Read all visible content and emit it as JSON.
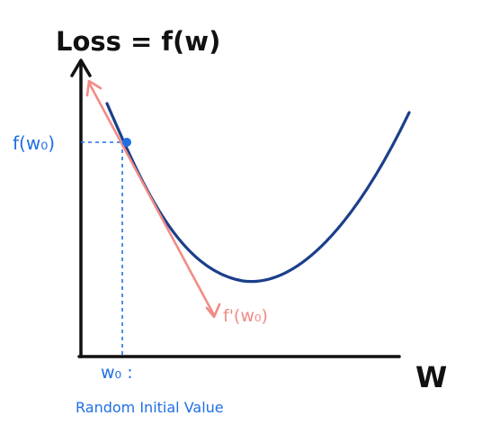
{
  "title": "Loss = f(w)",
  "x_axis_label": "W",
  "y_value_label": "f(w₀)",
  "x_value_label": "w₀ :",
  "tangent_label": "f'(w₀)",
  "caption": "Random Initial Value",
  "colors": {
    "axis": "#111111",
    "curve": "#1b3f8b",
    "tangent": "#f28b86",
    "point": "#1f6fe5",
    "guide": "#1f6fe5",
    "annotation": "#1f6fe5"
  }
}
